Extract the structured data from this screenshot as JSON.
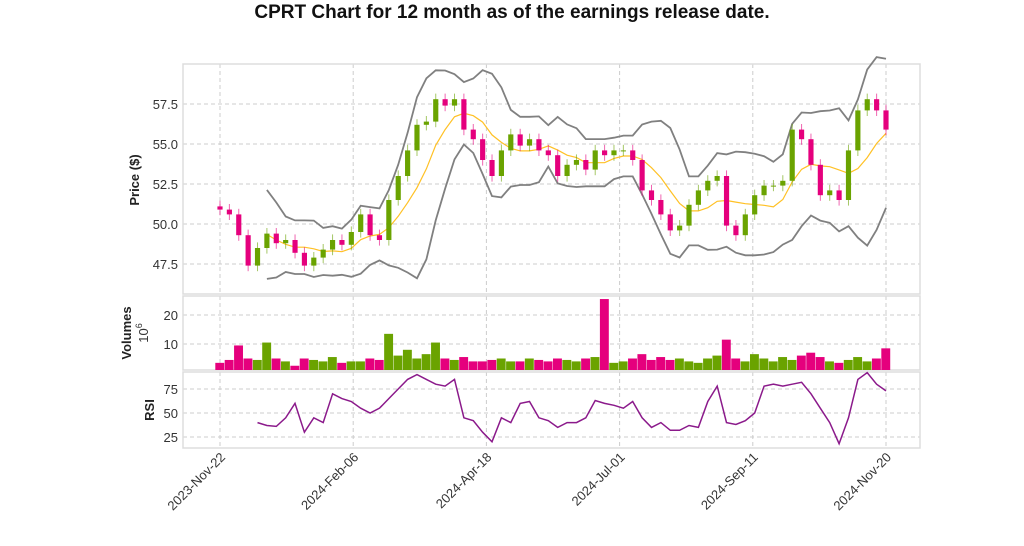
{
  "chart_data": {
    "type": "candlestick",
    "title": "CPRT Chart for 12 month as of the earnings release date.",
    "x_tick_labels": [
      "2023-Nov-22",
      "2024-Feb-06",
      "2024-Apr-18",
      "2024-Jul-01",
      "2024-Sep-11",
      "2024-Nov-20"
    ],
    "panels": {
      "price": {
        "ylabel": "Price ($)",
        "yticks": [
          47.5,
          50.0,
          52.5,
          55.0,
          57.5
        ],
        "ytick_labels": [
          "47.5",
          "50.0",
          "52.5",
          "55.0",
          "57.5"
        ],
        "ylim": [
          45.6,
          60.0
        ]
      },
      "volume": {
        "ylabel": "Volumes",
        "multiplier_label": "10",
        "multiplier_exp": "6",
        "yticks": [
          10,
          20
        ],
        "ytick_labels": [
          "10",
          "20"
        ],
        "ylim": [
          0,
          27
        ]
      },
      "rsi": {
        "ylabel": "RSI",
        "yticks": [
          25,
          50,
          75
        ],
        "ytick_labels": [
          "25",
          "50",
          "75"
        ],
        "ylim": [
          15,
          95
        ]
      }
    },
    "close": [
      50.9,
      50.6,
      49.3,
      47.4,
      48.5,
      49.4,
      48.8,
      49.0,
      48.2,
      47.4,
      47.9,
      48.4,
      49.0,
      48.7,
      49.5,
      50.6,
      49.3,
      49.0,
      51.5,
      53.0,
      54.6,
      56.2,
      56.4,
      57.8,
      57.4,
      57.8,
      55.9,
      55.3,
      54.0,
      53.0,
      54.6,
      55.6,
      54.9,
      55.3,
      54.6,
      54.3,
      53.0,
      53.7,
      54.0,
      53.4,
      54.6,
      54.3,
      54.6,
      54.6,
      54.0,
      52.1,
      51.5,
      50.6,
      49.6,
      49.9,
      51.2,
      52.1,
      52.7,
      53.0,
      49.9,
      49.3,
      50.6,
      51.8,
      52.4,
      52.4,
      52.7,
      55.9,
      55.3,
      53.7,
      51.8,
      52.1,
      51.5,
      54.6,
      57.1,
      57.8,
      57.1,
      55.9
    ],
    "volume_millions": [
      3.5,
      4.5,
      9.5,
      5.0,
      4.5,
      10.5,
      5.0,
      4.0,
      2.5,
      5.0,
      4.5,
      4.0,
      5.5,
      3.5,
      4.0,
      4.0,
      5.0,
      4.5,
      13.5,
      6.0,
      8.0,
      5.0,
      6.5,
      10.5,
      5.0,
      4.5,
      5.5,
      4.0,
      4.0,
      4.5,
      5.0,
      4.0,
      4.0,
      5.0,
      4.5,
      4.0,
      5.0,
      4.5,
      4.0,
      5.0,
      5.5,
      25.5,
      3.5,
      4.0,
      5.0,
      6.5,
      4.5,
      5.5,
      4.5,
      5.0,
      4.0,
      3.5,
      5.0,
      6.0,
      11.5,
      5.0,
      4.0,
      6.5,
      5.0,
      4.0,
      5.5,
      4.5,
      6.0,
      7.0,
      5.5,
      4.0,
      3.5,
      4.5,
      5.5,
      4.0,
      5.0,
      8.5
    ],
    "rsi": [
      null,
      null,
      null,
      null,
      40,
      37,
      36,
      45,
      60,
      30,
      45,
      40,
      70,
      65,
      62,
      55,
      50,
      55,
      65,
      75,
      85,
      90,
      85,
      80,
      78,
      85,
      45,
      42,
      30,
      20,
      45,
      40,
      60,
      62,
      45,
      42,
      35,
      40,
      40,
      45,
      63,
      60,
      58,
      55,
      62,
      45,
      35,
      40,
      32,
      32,
      37,
      35,
      62,
      78,
      40,
      38,
      42,
      50,
      78,
      80,
      78,
      80,
      82,
      70,
      55,
      40,
      18,
      45,
      85,
      92,
      80,
      73
    ],
    "indicators": {
      "sma_window_points": 6,
      "bollinger_std": 2
    },
    "colors": {
      "up": "#6aa300",
      "down": "#e5007d",
      "sma": "#ffc125",
      "bands": "#808080",
      "rsi": "#8b1a8b",
      "grid": "#cccccc"
    }
  }
}
